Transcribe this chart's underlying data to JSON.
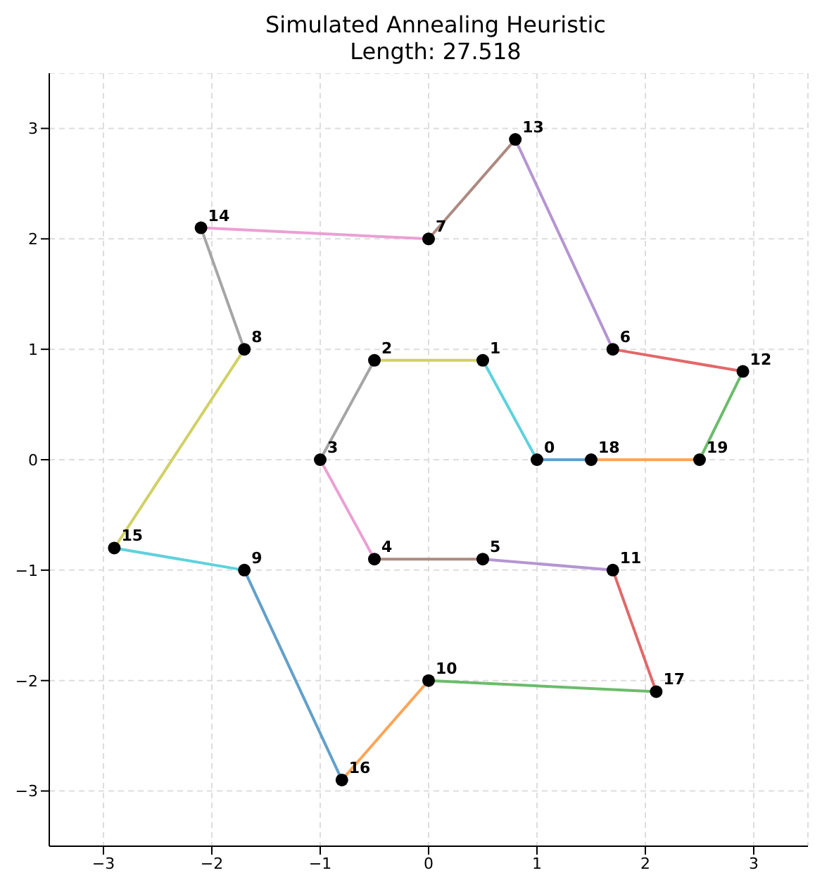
{
  "chart_data": {
    "type": "line",
    "title": "Simulated Annealing Heuristic\nLength: 27.518",
    "xlim": [
      -3.5,
      3.5
    ],
    "ylim": [
      -3.5,
      3.5
    ],
    "xticks": [
      -3,
      -2,
      -1,
      0,
      1,
      2,
      3
    ],
    "yticks": [
      -3,
      -2,
      -1,
      0,
      1,
      2,
      3
    ],
    "grid": true,
    "legend": false,
    "marker": "none",
    "line_style": "solid",
    "series": [
      {
        "color": "#62a0ca",
        "x": [
          1.0,
          1.5
        ],
        "values": [
          0,
          0
        ]
      },
      {
        "color": "#ffa556",
        "x": [
          1.5,
          2.5
        ],
        "values": [
          0,
          0
        ]
      },
      {
        "color": "#6bbc6b",
        "x": [
          2.5,
          2.9
        ],
        "values": [
          0,
          0.8
        ]
      },
      {
        "color": "#e26869",
        "x": [
          2.9,
          1.7
        ],
        "values": [
          0.8,
          1.0
        ]
      },
      {
        "color": "#b495d1",
        "x": [
          1.7,
          0.8
        ],
        "values": [
          1.0,
          2.9
        ]
      },
      {
        "color": "#ae8981",
        "x": [
          0.8,
          0
        ],
        "values": [
          2.9,
          2.0
        ]
      },
      {
        "color": "#eba0d4",
        "x": [
          0,
          -2.1
        ],
        "values": [
          2.0,
          2.1
        ]
      },
      {
        "color": "#a5a5a5",
        "x": [
          -2.1,
          -1.7
        ],
        "values": [
          2.1,
          1.0
        ]
      },
      {
        "color": "#d0d164",
        "x": [
          -1.7,
          -2.9
        ],
        "values": [
          1.0,
          -0.8
        ]
      },
      {
        "color": "#5dd2dd",
        "x": [
          -2.9,
          -1.7
        ],
        "values": [
          -0.8,
          -1.0
        ]
      },
      {
        "color": "#62a0ca",
        "x": [
          -1.7,
          -0.8
        ],
        "values": [
          -1.0,
          -2.9
        ]
      },
      {
        "color": "#ffa556",
        "x": [
          -0.8,
          0
        ],
        "values": [
          -2.9,
          -2.0
        ]
      },
      {
        "color": "#6bbc6b",
        "x": [
          0,
          2.1
        ],
        "values": [
          -2.0,
          -2.1
        ]
      },
      {
        "color": "#e26869",
        "x": [
          2.1,
          1.7
        ],
        "values": [
          -2.1,
          -1.0
        ]
      },
      {
        "color": "#b495d1",
        "x": [
          1.7,
          0.5
        ],
        "values": [
          -1.0,
          -0.9
        ]
      },
      {
        "color": "#ae8981",
        "x": [
          0.5,
          -0.5
        ],
        "values": [
          -0.9,
          -0.9
        ]
      },
      {
        "color": "#eba0d4",
        "x": [
          -0.5,
          -1.0
        ],
        "values": [
          -0.9,
          0
        ]
      },
      {
        "color": "#a5a5a5",
        "x": [
          -1.0,
          -0.5
        ],
        "values": [
          0,
          0.9
        ]
      },
      {
        "color": "#d0d164",
        "x": [
          -0.5,
          0.5
        ],
        "values": [
          0.9,
          0.9
        ]
      },
      {
        "color": "#5dd2dd",
        "x": [
          0.5,
          1.0
        ],
        "values": [
          0.9,
          0
        ]
      },
      {
        "type": "scatter",
        "marker": "circle",
        "color": "#000000",
        "x": [
          1.0,
          0.5,
          -0.5,
          -1.0,
          -0.5,
          0.5,
          1.7,
          0,
          -1.7,
          -1.7,
          0,
          1.7,
          2.9,
          0.8,
          -2.1,
          -2.9,
          -0.8,
          2.1,
          1.5,
          2.5
        ],
        "values": [
          0,
          0.9,
          0.9,
          0,
          -0.9,
          -0.9,
          1.0,
          2.0,
          1.0,
          -1.0,
          -2.0,
          -1.0,
          0.8,
          2.9,
          2.1,
          -0.8,
          -2.9,
          -2.1,
          0,
          0
        ]
      }
    ],
    "annotations": [
      {
        "text": "0",
        "x": 1.0,
        "y": 0
      },
      {
        "text": "1",
        "x": 0.5,
        "y": 0.9
      },
      {
        "text": "2",
        "x": -0.5,
        "y": 0.9
      },
      {
        "text": "3",
        "x": -1.0,
        "y": 0
      },
      {
        "text": "4",
        "x": -0.5,
        "y": -0.9
      },
      {
        "text": "5",
        "x": 0.5,
        "y": -0.9
      },
      {
        "text": "6",
        "x": 1.7,
        "y": 1.0
      },
      {
        "text": "7",
        "x": 0,
        "y": 2.0
      },
      {
        "text": "8",
        "x": -1.7,
        "y": 1.0
      },
      {
        "text": "9",
        "x": -1.7,
        "y": -1.0
      },
      {
        "text": "10",
        "x": 0,
        "y": -2.0
      },
      {
        "text": "11",
        "x": 1.7,
        "y": -1.0
      },
      {
        "text": "12",
        "x": 2.9,
        "y": 0.8
      },
      {
        "text": "13",
        "x": 0.8,
        "y": 2.9
      },
      {
        "text": "14",
        "x": -2.1,
        "y": 2.1
      },
      {
        "text": "15",
        "x": -2.9,
        "y": -0.8
      },
      {
        "text": "16",
        "x": -0.8,
        "y": -2.9
      },
      {
        "text": "17",
        "x": 2.1,
        "y": -2.1
      },
      {
        "text": "18",
        "x": 1.5,
        "y": 0
      },
      {
        "text": "19",
        "x": 2.5,
        "y": 0
      }
    ]
  }
}
